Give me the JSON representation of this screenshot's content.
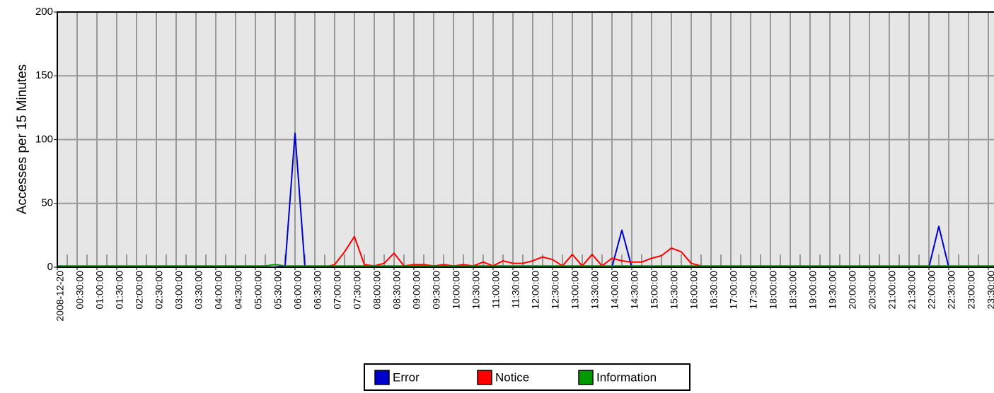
{
  "chart_data": {
    "type": "line",
    "ylabel": "Accesses per 15 Minutes",
    "categories": [
      "2008-12-20",
      null,
      "00:30:00",
      null,
      "01:00:00",
      null,
      "01:30:00",
      null,
      "02:00:00",
      null,
      "02:30:00",
      null,
      "03:00:00",
      null,
      "03:30:00",
      null,
      "04:00:00",
      null,
      "04:30:00",
      null,
      "05:00:00",
      null,
      "05:30:00",
      null,
      "06:00:00",
      null,
      "06:30:00",
      null,
      "07:00:00",
      null,
      "07:30:00",
      null,
      "08:00:00",
      null,
      "08:30:00",
      null,
      "09:00:00",
      null,
      "09:30:00",
      null,
      "10:00:00",
      null,
      "10:30:00",
      null,
      "11:00:00",
      null,
      "11:30:00",
      null,
      "12:00:00",
      null,
      "12:30:00",
      null,
      "13:00:00",
      null,
      "13:30:00",
      null,
      "14:00:00",
      null,
      "14:30:00",
      null,
      "15:00:00",
      null,
      "15:30:00",
      null,
      "16:00:00",
      null,
      "16:30:00",
      null,
      "17:00:00",
      null,
      "17:30:00",
      null,
      "18:00:00",
      null,
      "18:30:00",
      null,
      "19:00:00",
      null,
      "19:30:00",
      null,
      "20:00:00",
      null,
      "20:30:00",
      null,
      "21:00:00",
      null,
      "21:30:00",
      null,
      "22:00:00",
      null,
      "22:30:00",
      null,
      "23:00:00",
      null,
      "23:30:00",
      null
    ],
    "series": [
      {
        "name": "Error",
        "color": "#0000cc",
        "values": [
          0,
          0,
          0,
          0,
          0,
          0,
          0,
          0,
          0,
          0,
          0,
          0,
          0,
          0,
          0,
          0,
          0,
          0,
          0,
          0,
          0,
          0,
          0,
          1,
          105,
          0,
          0,
          0,
          0,
          0,
          0,
          0,
          0,
          0,
          0,
          0,
          0,
          0,
          0,
          0,
          0,
          0,
          0,
          0,
          0,
          0,
          0,
          0,
          0,
          0,
          0,
          0,
          0,
          0,
          0,
          0,
          0,
          29,
          0,
          0,
          0,
          0,
          0,
          0,
          0,
          0,
          0,
          0,
          0,
          0,
          0,
          0,
          0,
          0,
          0,
          0,
          0,
          0,
          0,
          0,
          0,
          0,
          0,
          0,
          0,
          0,
          0,
          0,
          0,
          32,
          0,
          0,
          0,
          0,
          0,
          0
        ]
      },
      {
        "name": "Notice",
        "color": "#ff0000",
        "values": [
          0,
          0,
          0,
          0,
          0,
          0,
          0,
          0,
          0,
          0,
          0,
          0,
          0,
          0,
          0,
          0,
          0,
          0,
          0,
          0,
          0,
          0,
          0,
          0,
          0,
          0,
          0,
          0,
          2,
          12,
          24,
          2,
          1,
          3,
          11,
          1,
          2,
          2,
          1,
          2,
          1,
          2,
          1,
          4,
          1,
          5,
          3,
          3,
          5,
          8,
          6,
          1,
          10,
          1,
          10,
          1,
          7,
          5,
          4,
          4,
          7,
          9,
          15,
          12,
          3,
          1,
          0,
          0,
          0,
          0,
          0,
          0,
          0,
          0,
          0,
          0,
          0,
          0,
          0,
          0,
          0,
          0,
          0,
          0,
          0,
          0,
          0,
          0,
          0,
          0,
          0,
          0,
          0,
          0,
          0,
          0
        ]
      },
      {
        "name": "Information",
        "color": "#009900",
        "values": [
          1,
          1,
          1,
          1,
          1,
          1,
          1,
          1,
          1,
          1,
          1,
          1,
          1,
          1,
          1,
          1,
          1,
          1,
          1,
          1,
          1,
          1,
          2,
          1,
          1,
          1,
          1,
          1,
          1,
          1,
          1,
          1,
          1,
          1,
          1,
          1,
          1,
          1,
          1,
          1,
          1,
          1,
          1,
          1,
          1,
          1,
          1,
          1,
          1,
          1,
          1,
          1,
          1,
          1,
          1,
          1,
          1,
          1,
          1,
          1,
          1,
          1,
          1,
          1,
          1,
          1,
          1,
          1,
          1,
          1,
          1,
          1,
          1,
          1,
          1,
          1,
          1,
          1,
          1,
          1,
          1,
          1,
          1,
          1,
          1,
          1,
          1,
          1,
          1,
          1,
          1,
          1,
          1,
          1,
          1,
          1
        ]
      }
    ],
    "ylim": [
      0,
      200
    ],
    "yticks": [
      0,
      50,
      100,
      150,
      200
    ],
    "grid": true
  }
}
